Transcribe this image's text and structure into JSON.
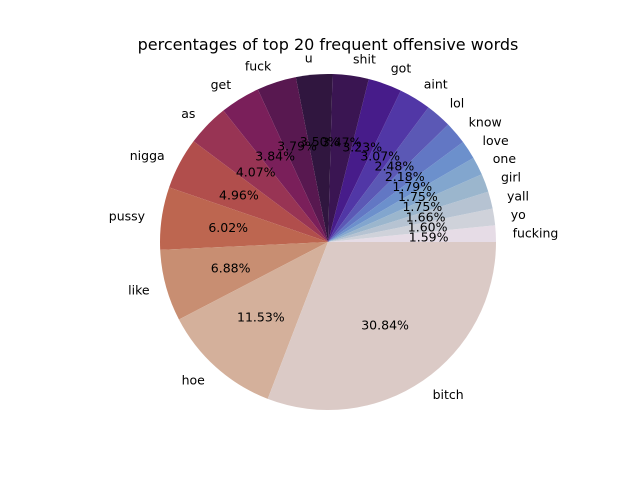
{
  "chart_data": {
    "type": "pie",
    "title": "percentages of top 20 frequent offensive words",
    "start_angle_deg": 0,
    "direction": "counterclockwise",
    "slices": [
      {
        "label": "fucking",
        "value": 1.59,
        "pct_label": "1.59%",
        "color": "#e6dce6"
      },
      {
        "label": "yo",
        "value": 1.6,
        "pct_label": "1.60%",
        "color": "#cfd2da"
      },
      {
        "label": "yall",
        "value": 1.66,
        "pct_label": "1.66%",
        "color": "#b6c3d2"
      },
      {
        "label": "girl",
        "value": 1.75,
        "pct_label": "1.75%",
        "color": "#9bb6cd"
      },
      {
        "label": "one",
        "value": 1.75,
        "pct_label": "1.75%",
        "color": "#82a6ce"
      },
      {
        "label": "love",
        "value": 1.79,
        "pct_label": "1.79%",
        "color": "#6c90cc"
      },
      {
        "label": "know",
        "value": 2.18,
        "pct_label": "2.18%",
        "color": "#6277c4"
      },
      {
        "label": "lol",
        "value": 2.48,
        "pct_label": "2.48%",
        "color": "#5b58b5"
      },
      {
        "label": "aint",
        "value": 3.07,
        "pct_label": "3.07%",
        "color": "#5137a6"
      },
      {
        "label": "got",
        "value": 3.23,
        "pct_label": "3.23%",
        "color": "#471c8a"
      },
      {
        "label": "shit",
        "value": 3.47,
        "pct_label": "3.47%",
        "color": "#3a1552"
      },
      {
        "label": "u",
        "value": 3.5,
        "pct_label": "3.50%",
        "color": "#30163f"
      },
      {
        "label": "fuck",
        "value": 3.79,
        "pct_label": "3.79%",
        "color": "#581850"
      },
      {
        "label": "get",
        "value": 3.84,
        "pct_label": "3.84%",
        "color": "#7a1f5a"
      },
      {
        "label": "as",
        "value": 4.07,
        "pct_label": "4.07%",
        "color": "#983454"
      },
      {
        "label": "nigga",
        "value": 4.96,
        "pct_label": "4.96%",
        "color": "#b14e4c"
      },
      {
        "label": "pussy",
        "value": 6.02,
        "pct_label": "6.02%",
        "color": "#bd6650"
      },
      {
        "label": "like",
        "value": 6.88,
        "pct_label": "6.88%",
        "color": "#c88e72"
      },
      {
        "label": "hoe",
        "value": 11.53,
        "pct_label": "11.53%",
        "color": "#d4b09b"
      },
      {
        "label": "bitch",
        "value": 30.84,
        "pct_label": "30.84%",
        "color": "#dbcac6"
      }
    ]
  }
}
